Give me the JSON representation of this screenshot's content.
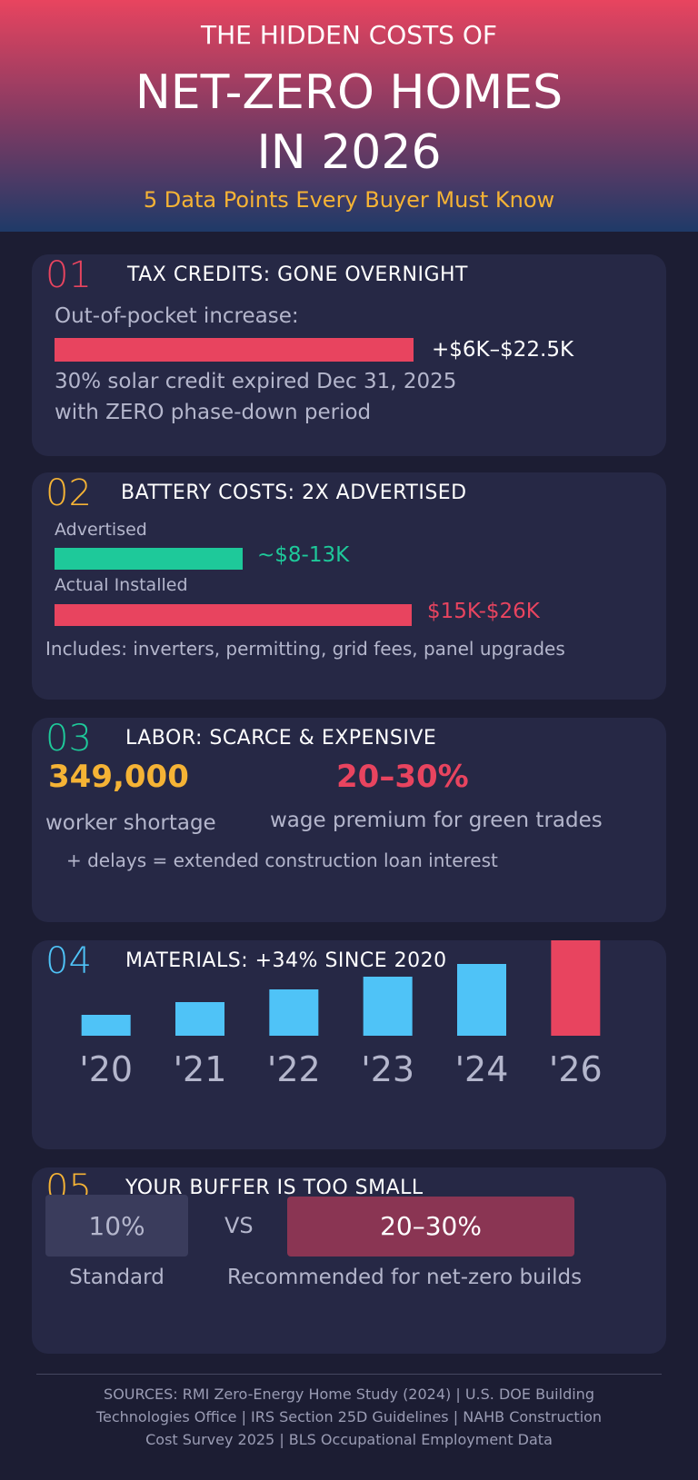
{
  "header": {
    "kicker": "THE HIDDEN COSTS OF",
    "title_line1": "NET-ZERO HOMES",
    "title_line2": "IN 2026",
    "subtitle": "5 Data Points Every Buyer Must Know"
  },
  "sections": [
    {
      "number": "01",
      "title": "TAX CREDITS: GONE OVERNIGHT",
      "label": "Out-of-pocket increase:",
      "bar_label": "+$6K–$22.5K",
      "note_line1": "30% solar credit expired Dec 31, 2025",
      "note_line2": "with ZERO phase-down period"
    },
    {
      "number": "02",
      "title": "BATTERY COSTS: 2X ADVERTISED",
      "advertised_label": "Advertised",
      "advertised_value": "~$8-13K",
      "actual_label": "Actual Installed",
      "actual_value": "$15K-$26K",
      "note": "Includes: inverters, permitting, grid fees, panel upgrades"
    },
    {
      "number": "03",
      "title": "LABOR: SCARCE & EXPENSIVE",
      "stat1": "349,000",
      "stat1_label": "worker shortage",
      "stat2": "20–30%",
      "stat2_label": "wage premium for green trades",
      "note": "+ delays = extended construction loan interest"
    },
    {
      "number": "04",
      "title": "MATERIALS: +34% SINCE 2020"
    },
    {
      "number": "05",
      "title": "YOUR BUFFER IS TOO SMALL",
      "standard_value": "10%",
      "standard_label": "Standard",
      "vs": "VS",
      "recommended_value": "20–30%",
      "recommended_label": "Recommended for net-zero builds"
    }
  ],
  "chart_data": {
    "type": "bar",
    "categories": [
      "'20",
      "'21",
      "'22",
      "'23",
      "'24",
      "'26"
    ],
    "values": [
      23,
      37,
      51,
      65,
      79,
      106
    ],
    "colors": [
      "#4fc3f7",
      "#4fc3f7",
      "#4fc3f7",
      "#4fc3f7",
      "#4fc3f7",
      "#e8445f"
    ],
    "ylim": [
      0,
      110
    ]
  },
  "sources": {
    "lines": [
      "SOURCES: RMI Zero-Energy Home Study (2024) | U.S. DOE Building",
      "Technologies Office | IRS Section 25D Guidelines | NAHB Construction",
      "Cost Survey 2025 | BLS Occupational Employment Data"
    ]
  }
}
